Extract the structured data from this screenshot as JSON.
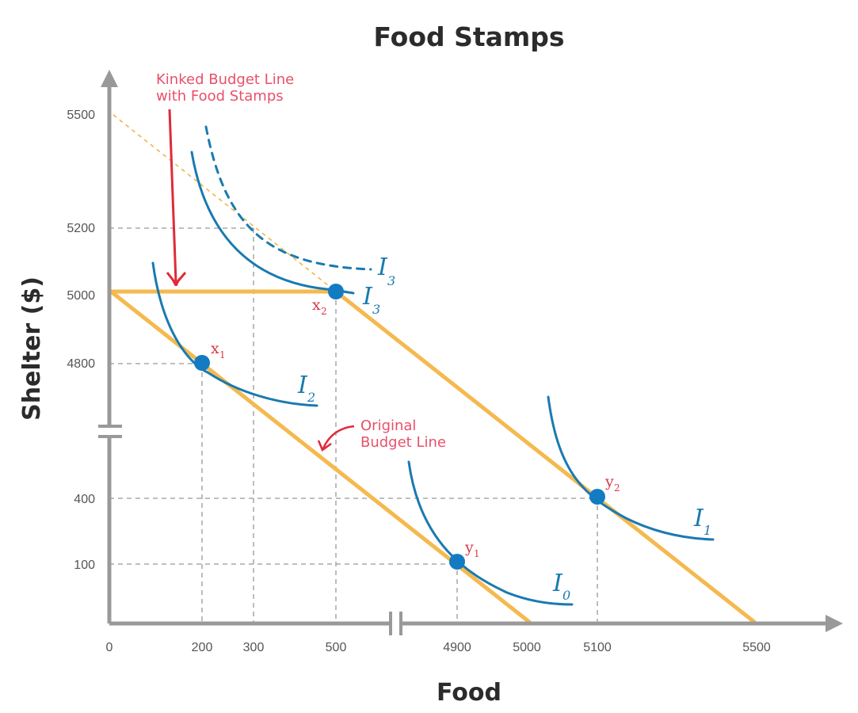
{
  "chart_data": {
    "type": "line",
    "title": "Food Stamps",
    "xlabel": "Food",
    "ylabel": "Shelter ($)",
    "x_ticks": [
      "0",
      "200",
      "300",
      "500",
      "4900",
      "5000",
      "5100",
      "5500"
    ],
    "y_ticks": [
      "100",
      "400",
      "4800",
      "5000",
      "5200",
      "5500"
    ],
    "axis_breaks": {
      "x": "between 500 and 4900",
      "y": "between 400 and 4800"
    },
    "series": [
      {
        "name": "Original Budget Line",
        "points": [
          [
            0,
            5000
          ],
          [
            5000,
            0
          ]
        ]
      },
      {
        "name": "Kinked Budget Line with Food Stamps",
        "points": [
          [
            0,
            5000
          ],
          [
            500,
            5000
          ],
          [
            5500,
            0
          ]
        ]
      }
    ],
    "extension_line": [
      [
        0,
        5500
      ],
      [
        500,
        5000
      ]
    ],
    "points": [
      {
        "label": "x",
        "sub": "1",
        "x": 200,
        "y": 4800
      },
      {
        "label": "x",
        "sub": "2",
        "x": 500,
        "y": 5000
      },
      {
        "label": "y",
        "sub": "1",
        "x": 4900,
        "y": 100
      },
      {
        "label": "y",
        "sub": "2",
        "x": 5100,
        "y": 400
      }
    ],
    "indifference_curves": [
      {
        "label": "I",
        "sub": "2",
        "through": "x1"
      },
      {
        "label": "I",
        "sub": "3",
        "through": "x2"
      },
      {
        "label": "I",
        "sub": "3",
        "style": "dashed"
      },
      {
        "label": "I",
        "sub": "0",
        "through": "y1"
      },
      {
        "label": "I",
        "sub": "1",
        "through": "y2"
      }
    ],
    "annotations": [
      {
        "text_line1": "Kinked Budget Line",
        "text_line2": "with Food Stamps"
      },
      {
        "text_line1": "Original",
        "text_line2": "Budget Line"
      }
    ],
    "colors": {
      "budget": "#f5b94f",
      "curve": "#1a7ab0",
      "point": "#137bc2",
      "annotation": "#e8506a",
      "axis": "#999999",
      "grid": "#999999"
    }
  }
}
